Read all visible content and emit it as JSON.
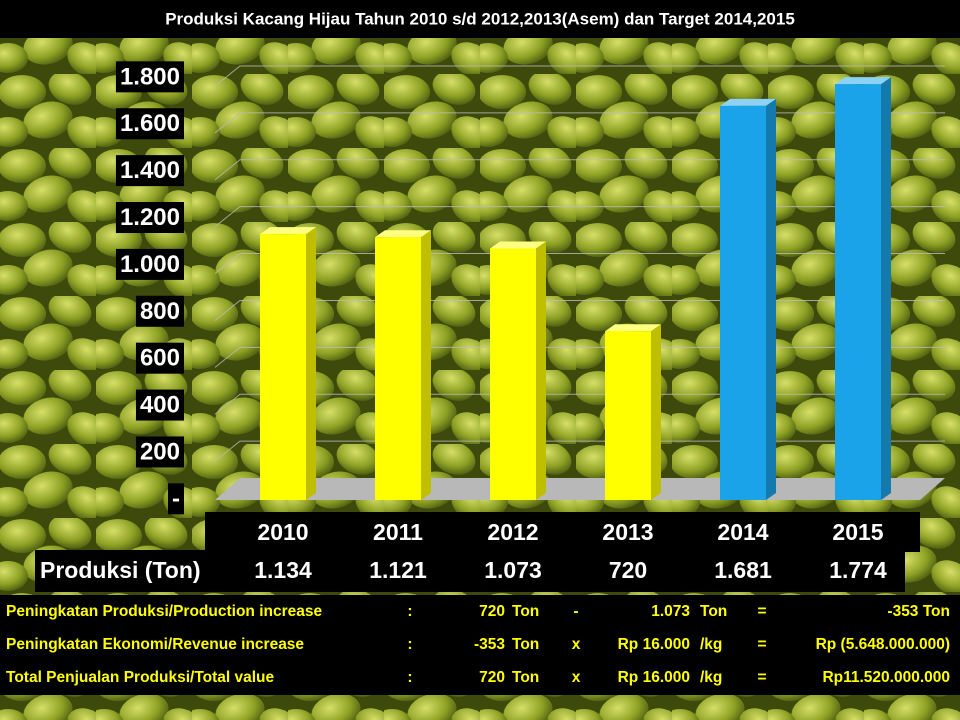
{
  "chart_data": {
    "type": "bar",
    "title": "Produksi Kacang Hijau Tahun 2010 s/d 2012,2013(Asem)  dan Target  2014,2015",
    "categories": [
      "2010",
      "2011",
      "2012",
      "2013",
      "2014",
      "2015"
    ],
    "values": [
      1134,
      1121,
      1073,
      720,
      1681,
      1774
    ],
    "value_labels": [
      "1.134",
      "1.121",
      "1.073",
      "720",
      "1.681",
      "1.774"
    ],
    "values_label": "Produksi (Ton)",
    "colors": [
      "#ffff00",
      "#ffff00",
      "#ffff00",
      "#ffff00",
      "#1aa3e8",
      "#1aa3e8"
    ],
    "ylim": [
      0,
      1800
    ],
    "yticks": [
      {
        "value": 0,
        "label": "-"
      },
      200,
      400,
      600,
      800,
      {
        "value": 1000,
        "label": "1.000"
      },
      {
        "value": 1200,
        "label": "1.200"
      },
      {
        "value": 1400,
        "label": "1.400"
      },
      {
        "value": 1600,
        "label": "1.600"
      },
      {
        "value": 1800,
        "label": "1.800"
      }
    ],
    "grid": true
  },
  "table": {
    "rows": [
      [
        "Peningkatan Produksi/Production increase",
        ":",
        "720",
        "Ton",
        "-",
        "1.073",
        "Ton",
        "=",
        "-353  Ton"
      ],
      [
        "Peningkatan Ekonomi/Revenue increase",
        ":",
        "-353",
        "Ton",
        "x",
        "Rp 16.000",
        "/kg",
        "=",
        "Rp (5.648.000.000)"
      ],
      [
        "Total Penjualan Produksi/Total  value",
        ":",
        "720",
        "Ton",
        "x",
        "Rp 16.000",
        "/kg",
        "=",
        "Rp11.520.000.000"
      ]
    ]
  }
}
